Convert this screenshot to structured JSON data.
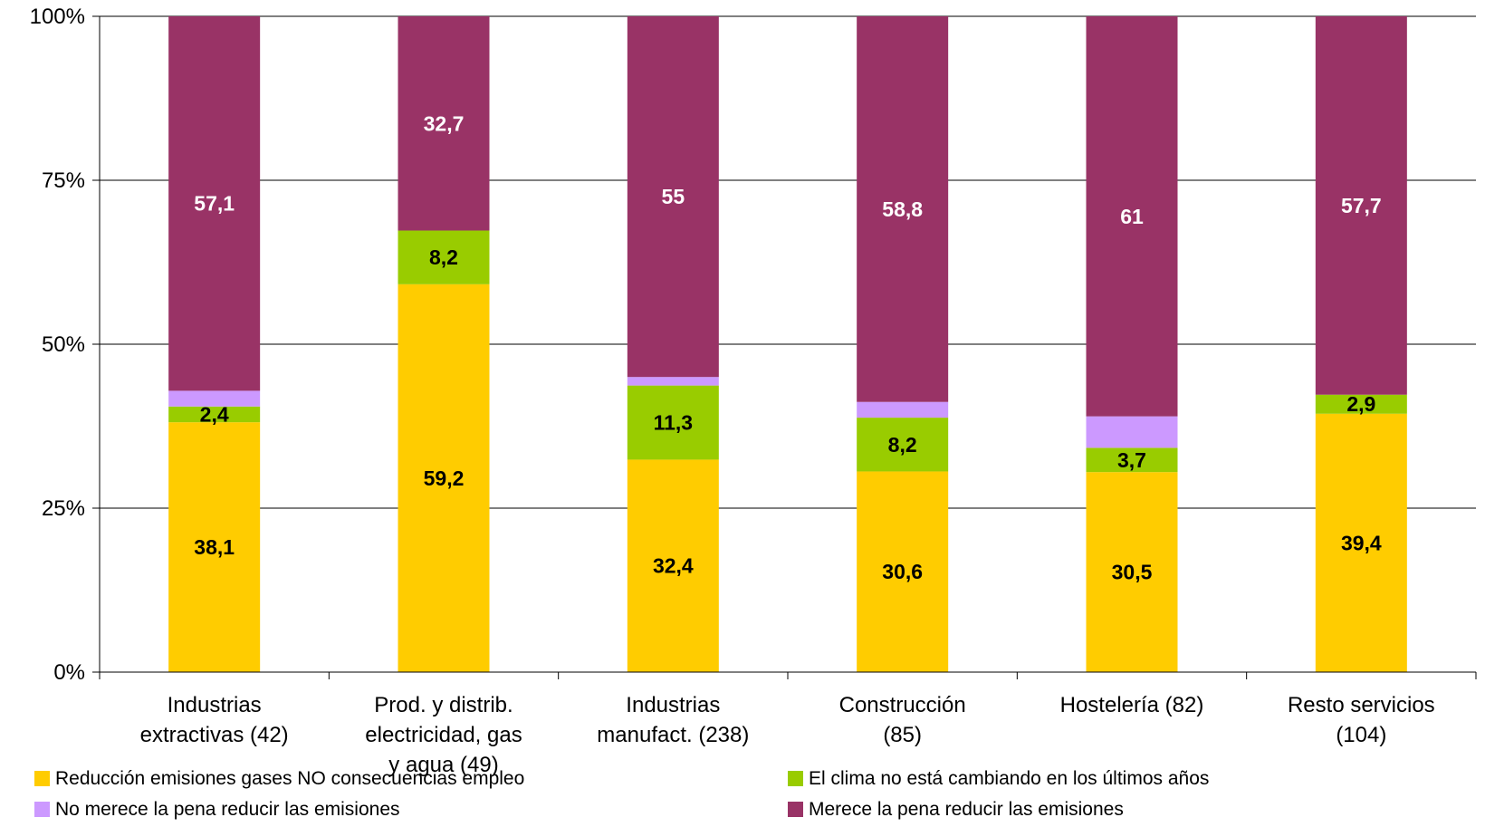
{
  "chart_data": {
    "type": "bar",
    "stacked": true,
    "percent": true,
    "yticks": [
      "0%",
      "25%",
      "50%",
      "75%",
      "100%"
    ],
    "ylim": [
      0,
      100
    ],
    "grid": true,
    "legend_position": "bottom",
    "categories": [
      [
        "Industrias",
        "extractivas (42)"
      ],
      [
        "Prod. y distrib.",
        "electricidad, gas",
        "y agua (49)"
      ],
      [
        "Industrias",
        "manufact. (238)"
      ],
      [
        "Construcción",
        "(85)"
      ],
      [
        "Hostelería (82)"
      ],
      [
        "Resto servicios",
        "(104)"
      ]
    ],
    "series": [
      {
        "name": "Reducción emisiones gases NO consecuencias empleo",
        "color": "#FFCC00",
        "label_color": "#000000",
        "values": [
          38.1,
          59.2,
          32.4,
          30.6,
          30.5,
          39.4
        ],
        "labels": [
          "38,1",
          "59,2",
          "32,4",
          "30,6",
          "30,5",
          "39,4"
        ]
      },
      {
        "name": "El clima no está cambiando en los últimos años",
        "color": "#99CC00",
        "label_color": "#000000",
        "values": [
          2.4,
          8.2,
          11.3,
          8.2,
          3.7,
          2.9
        ],
        "labels": [
          "2,4",
          "8,2",
          "11,3",
          "8,2",
          "3,7",
          "2,9"
        ]
      },
      {
        "name": "No merece la pena reducir las emisiones",
        "color": "#CC99FF",
        "label_color": "#000000",
        "values": [
          2.4,
          0,
          1.3,
          2.4,
          4.8,
          0
        ],
        "labels": [
          "",
          "",
          "",
          "",
          "",
          ""
        ]
      },
      {
        "name": "Merece la pena reducir las emisiones",
        "color": "#993366",
        "label_color": "#FFFFFF",
        "values": [
          57.1,
          32.7,
          55,
          58.8,
          61,
          57.7
        ],
        "labels": [
          "57,1",
          "32,7",
          "55",
          "58,8",
          "61",
          "57,7"
        ]
      }
    ]
  }
}
